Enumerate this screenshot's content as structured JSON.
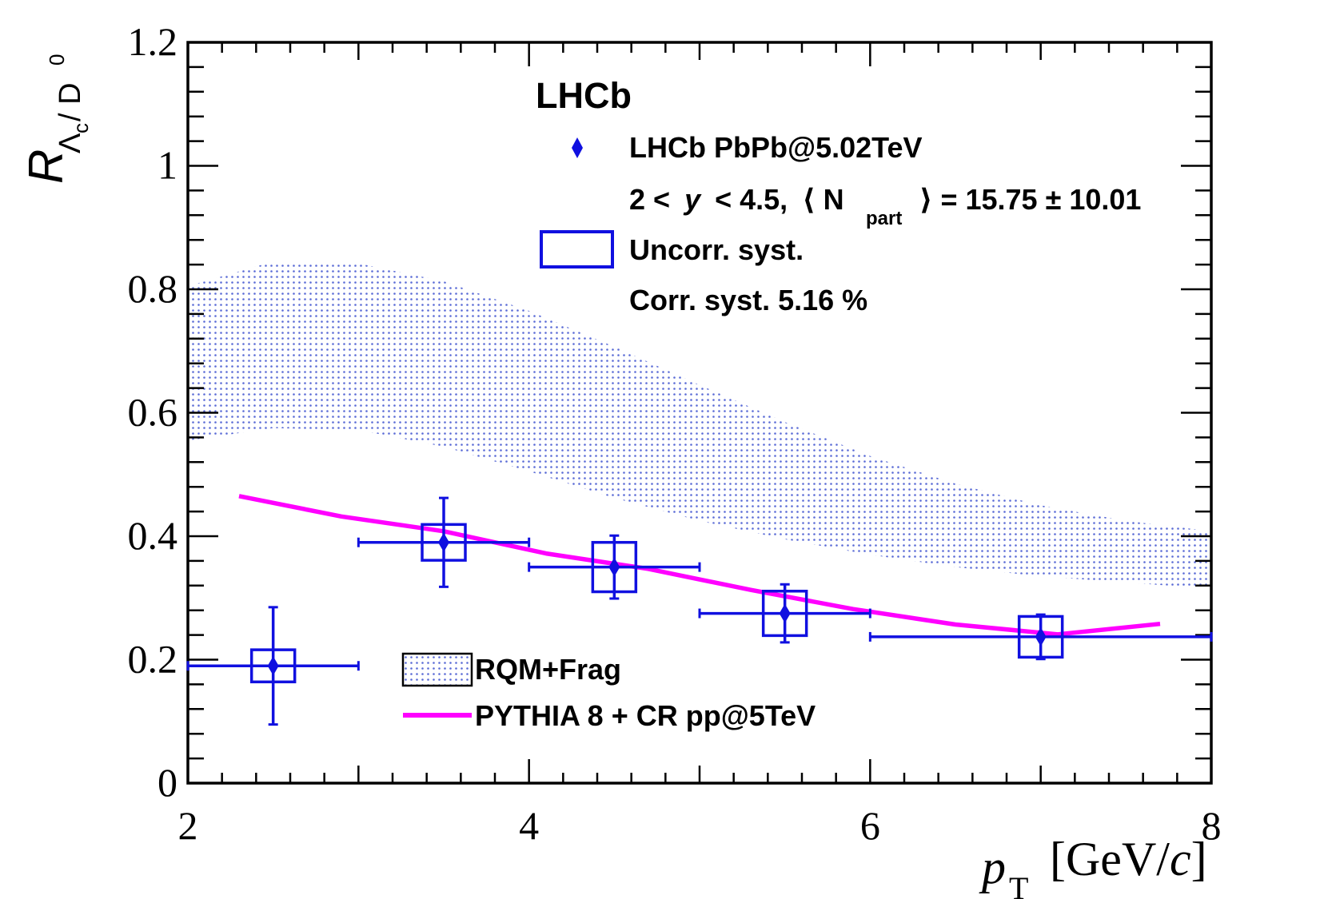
{
  "colors": {
    "data": "#1010e0",
    "pythia": "#ff00ff",
    "band_dot": "#5a6bd6",
    "axis": "#000000"
  },
  "labels": {
    "experiment": "LHCb",
    "legend_data": "LHCb PbPb@5.02TeV",
    "legend_kin_a": "2 <",
    "legend_kin_y": "y",
    "legend_kin_b": "< 4.5,",
    "legend_npart_open": "⟨ N",
    "legend_npart_sub": "part",
    "legend_npart_close": "⟩ = 15.75 ± 10.01",
    "legend_uncorr": "Uncorr. syst.",
    "legend_corr": "Corr. syst. 5.16 %",
    "legend_rqm": "RQM+Frag",
    "legend_pythia": "PYTHIA 8 + CR  pp@5TeV",
    "xlabel_p": "p",
    "xlabel_sub": "T",
    "xlabel_unit_a": "[GeV/",
    "xlabel_unit_c": "c",
    "xlabel_unit_b": "]",
    "ylabel_R": "R",
    "ylabel_lambda": "Λ",
    "ylabel_c": "c",
    "ylabel_slash": " / D",
    "ylabel_zero": "0"
  },
  "chart_data": {
    "type": "scatter",
    "xlim": [
      2,
      8
    ],
    "ylim": [
      0,
      1.2
    ],
    "x_ticks": [
      "2",
      "4",
      "6",
      "8"
    ],
    "y_ticks": [
      "0",
      "0.2",
      "0.4",
      "0.6",
      "0.8",
      "1",
      "1.2"
    ],
    "series": [
      {
        "name": "LHCb PbPb@5.02TeV",
        "points": [
          {
            "x": 2.5,
            "y": 0.19,
            "xlo": 2.0,
            "xhi": 3.0,
            "ystat": 0.095,
            "sys": 0.026
          },
          {
            "x": 3.5,
            "y": 0.39,
            "xlo": 3.0,
            "xhi": 4.0,
            "ystat": 0.072,
            "sys": 0.029
          },
          {
            "x": 4.5,
            "y": 0.35,
            "xlo": 4.0,
            "xhi": 5.0,
            "ystat": 0.051,
            "sys": 0.04
          },
          {
            "x": 5.5,
            "y": 0.275,
            "xlo": 5.0,
            "xhi": 6.0,
            "ystat": 0.047,
            "sys": 0.036
          },
          {
            "x": 7.0,
            "y": 0.237,
            "xlo": 6.0,
            "xhi": 8.0,
            "ystat": 0.036,
            "sys": 0.033
          }
        ]
      },
      {
        "name": "PYTHIA 8 + CR  pp@5TeV",
        "x": [
          2.3,
          2.9,
          3.5,
          4.1,
          4.7,
          5.3,
          5.9,
          6.5,
          7.1,
          7.7
        ],
        "y": [
          0.465,
          0.432,
          0.408,
          0.372,
          0.347,
          0.313,
          0.282,
          0.257,
          0.241,
          0.258
        ]
      },
      {
        "name": "RQM+Frag",
        "x": [
          2.0,
          2.5,
          3.0,
          3.5,
          4.0,
          4.5,
          5.0,
          5.5,
          6.0,
          6.5,
          7.0,
          7.5,
          8.0
        ],
        "upper": [
          0.805,
          0.845,
          0.842,
          0.813,
          0.765,
          0.707,
          0.645,
          0.585,
          0.53,
          0.485,
          0.45,
          0.425,
          0.408
        ],
        "lower": [
          0.555,
          0.575,
          0.572,
          0.545,
          0.505,
          0.462,
          0.425,
          0.395,
          0.37,
          0.35,
          0.335,
          0.325,
          0.315
        ]
      }
    ]
  }
}
